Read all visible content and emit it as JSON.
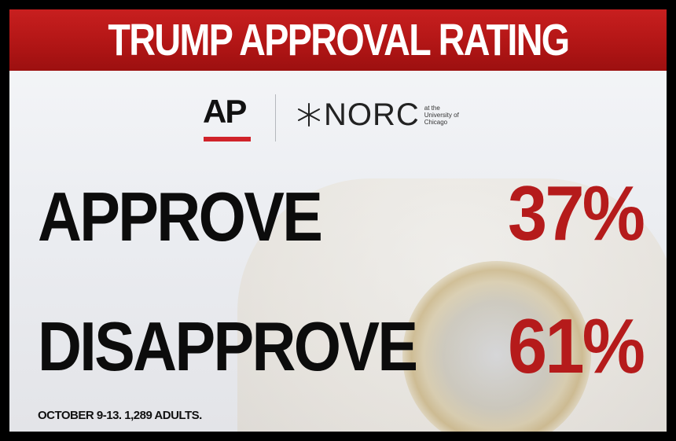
{
  "header": {
    "title": "TRUMP APPROVAL RATING"
  },
  "logos": {
    "ap": "AP",
    "norc": "NORC",
    "norc_subtitle": [
      "at the",
      "University of",
      "Chicago"
    ],
    "ap_accent": "#d0232a"
  },
  "results": [
    {
      "label": "APPROVE",
      "value": "37%"
    },
    {
      "label": "DISAPPROVE",
      "value": "61%"
    }
  ],
  "footnote": "OCTOBER 9-13. 1,289 ADULTS.",
  "colors": {
    "banner": "#b51515",
    "value": "#b51b1b",
    "text": "#0c0c0c"
  }
}
